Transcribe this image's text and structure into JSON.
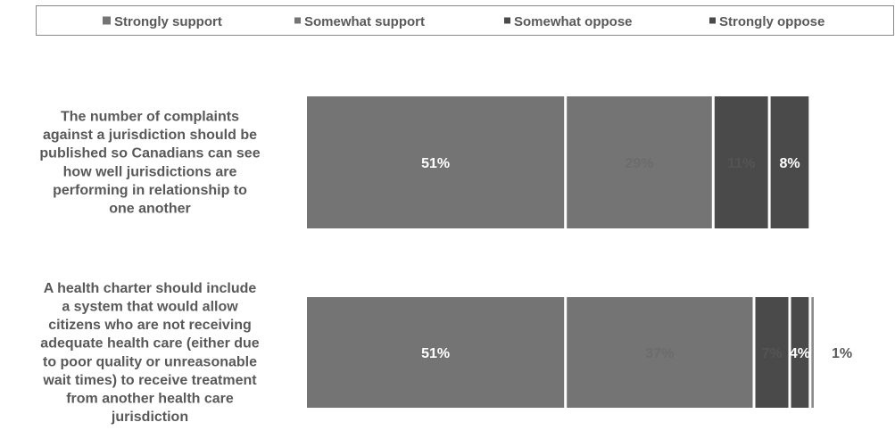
{
  "chart_data": {
    "type": "bar",
    "orientation": "horizontal",
    "stacked": true,
    "title": "",
    "xlabel": "",
    "ylabel": "",
    "xlim": [
      0,
      100
    ],
    "grid": false,
    "legend_position": "top",
    "categories": [
      [
        "The number of complaints",
        "against a jurisdiction should be",
        "published so Canadians can see",
        "how well jurisdictions are",
        "performing in relationship to",
        "one another"
      ],
      [
        "A health charter should include",
        "a system that would allow",
        "citizens who are not receiving",
        "adequate health care (either due",
        "to poor quality or unreasonable",
        "wait times) to receive treatment",
        "from another health care",
        "jurisdiction"
      ]
    ],
    "series": [
      {
        "name": "Strongly support",
        "values": [
          51,
          51
        ],
        "labels": [
          "51%",
          "51%"
        ],
        "color": "#747474",
        "label_color": "#ffffff"
      },
      {
        "name": "Somewhat support",
        "values": [
          29,
          37
        ],
        "labels": [
          "29%",
          "37%"
        ],
        "color": "#747474",
        "label_color": "#6c6c6c"
      },
      {
        "name": "Somewhat oppose",
        "values": [
          11,
          7
        ],
        "labels": [
          "11%",
          "7%"
        ],
        "color": "#4a4a4a",
        "label_color": "#545454"
      },
      {
        "name": "Strongly oppose",
        "values": [
          8,
          4
        ],
        "labels": [
          "8%",
          "4%"
        ],
        "color": "#4a4a4a",
        "label_color": "#ffffff"
      },
      {
        "name": "",
        "values": [
          0,
          1
        ],
        "labels": [
          "",
          "1%"
        ],
        "color": "#8c8c8c",
        "label_color": "#595959"
      }
    ]
  }
}
